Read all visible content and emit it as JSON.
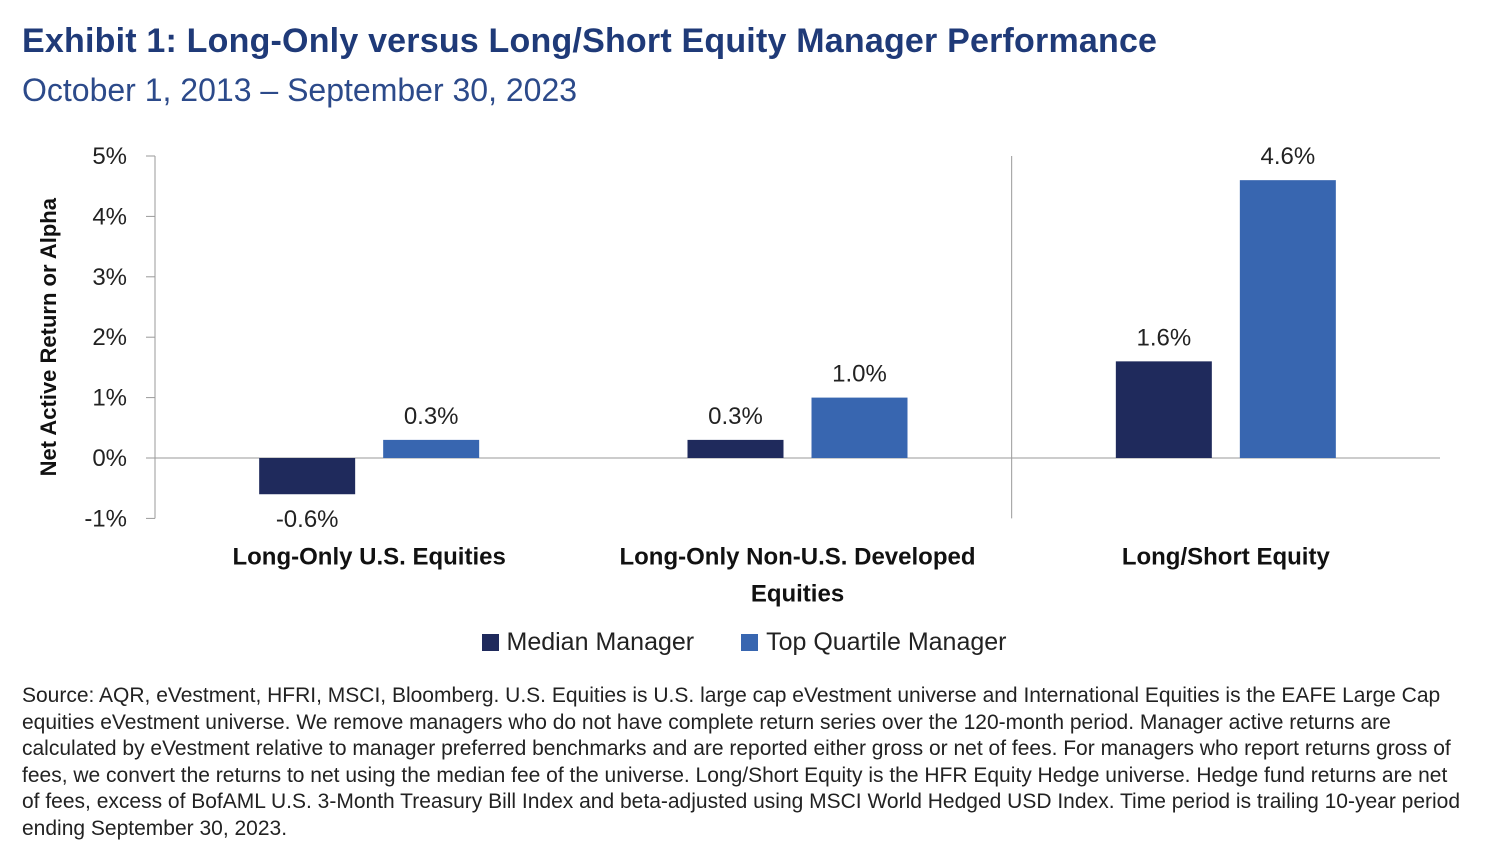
{
  "title": "Exhibit 1: Long-Only versus Long/Short Equity Manager Performance",
  "subtitle": "October 1, 2013 – September 30, 2023",
  "chart_data": {
    "type": "bar",
    "categories": [
      [
        "Long-Only U.S. Equities"
      ],
      [
        "Long-Only Non-U.S. Developed",
        "Equities"
      ],
      [
        "Long/Short Equity"
      ]
    ],
    "series": [
      {
        "name": "Median Manager",
        "values": [
          -0.6,
          0.3,
          1.6
        ],
        "labels": [
          "-0.6%",
          "0.3%",
          "1.6%"
        ],
        "color": "#1f2a5c"
      },
      {
        "name": "Top Quartile Manager",
        "values": [
          0.3,
          1.0,
          4.6
        ],
        "labels": [
          "0.3%",
          "1.0%",
          "4.6%"
        ],
        "color": "#3866b0"
      }
    ],
    "ylabel": "Net Active Return or Alpha",
    "ylim": [
      -1,
      5
    ],
    "yticks": [
      5,
      4,
      3,
      2,
      1,
      0,
      -1
    ],
    "ytick_labels": [
      "5%",
      "4%",
      "3%",
      "2%",
      "1%",
      "0%",
      "-1%"
    ],
    "grid": false,
    "legend_position": "bottom"
  },
  "source": "Source: AQR, eVestment, HFRI, MSCI, Bloomberg. U.S. Equities is U.S. large cap eVestment universe and International Equities is the EAFE Large Cap equities eVestment universe. We remove managers who do not have complete return series over the 120-month period. Manager active returns are calculated by eVestment relative to manager preferred benchmarks and are reported either gross or net of fees. For managers who report returns gross of fees, we convert the returns to net using the median fee of the universe. Long/Short Equity is the HFR Equity Hedge universe. Hedge fund returns are net of fees, excess of BofAML U.S. 3-Month Treasury Bill Index and beta-adjusted using MSCI World Hedged USD Index. Time period is trailing 10-year period ending September 30, 2023."
}
